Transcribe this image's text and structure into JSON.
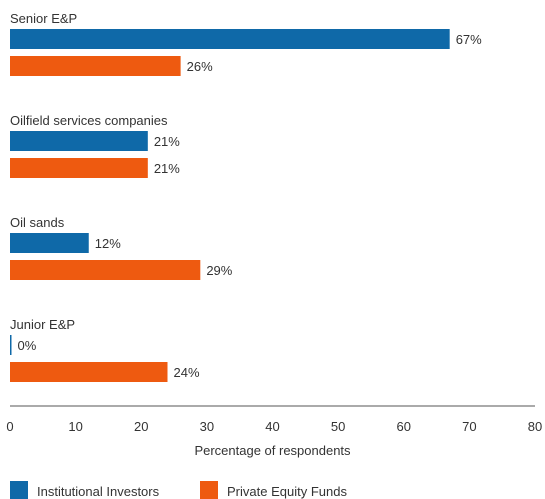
{
  "chart_data": {
    "type": "bar",
    "orientation": "horizontal",
    "categories": [
      "Senior E&P",
      "Oilfield services companies",
      "Oil sands",
      "Junior E&P"
    ],
    "series": [
      {
        "name": "Institutional Investors",
        "values": [
          67,
          21,
          12,
          0
        ],
        "value_labels": [
          "67%",
          "21%",
          "12%",
          "0%"
        ],
        "color": "#0f69a8"
      },
      {
        "name": "Private Equity Funds",
        "values": [
          26,
          21,
          29,
          24
        ],
        "value_labels": [
          "26%",
          "21%",
          "29%",
          "24%"
        ],
        "color": "#ee5a10"
      }
    ],
    "xlabel": "Percentage of respondents",
    "xlim": [
      0,
      80
    ],
    "xticks": [
      0,
      10,
      20,
      30,
      40,
      50,
      60,
      70,
      80
    ],
    "tick_labels": [
      "0",
      "10",
      "20",
      "30",
      "40",
      "50",
      "60",
      "70",
      "80"
    ],
    "grid": false,
    "legend_position": "bottom-left"
  }
}
